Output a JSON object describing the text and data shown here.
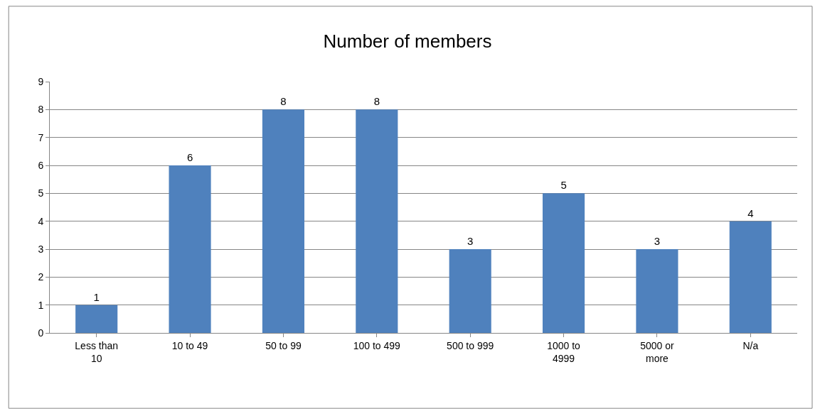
{
  "chart_data": {
    "type": "bar",
    "title": "Number of members",
    "categories": [
      "Less than\n10",
      "10 to 49",
      "50 to 99",
      "100 to 499",
      "500 to 999",
      "1000 to\n4999",
      "5000 or\nmore",
      "N/a"
    ],
    "values": [
      1,
      6,
      8,
      8,
      3,
      5,
      3,
      4
    ],
    "color": "#4f81bd",
    "ylim": [
      0,
      9
    ],
    "yticks": [
      0,
      1,
      2,
      3,
      4,
      5,
      6,
      7,
      8,
      9
    ],
    "grid": "y",
    "data_labels": true
  }
}
